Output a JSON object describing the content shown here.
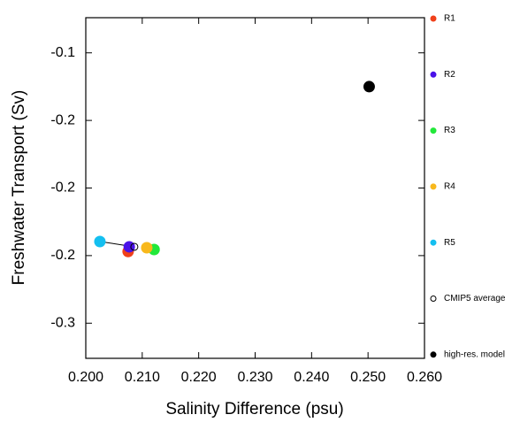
{
  "chart_data": {
    "type": "scatter",
    "xlabel": "Salinity Difference (psu)",
    "ylabel": "Freshwater Transport (Sv)",
    "xlim": [
      0.2,
      0.26
    ],
    "ylim": [
      -0.326,
      -0.074
    ],
    "xticks": [
      {
        "value": 0.2,
        "label": "0.200"
      },
      {
        "value": 0.21,
        "label": "0.210"
      },
      {
        "value": 0.22,
        "label": "0.220"
      },
      {
        "value": 0.23,
        "label": "0.230"
      },
      {
        "value": 0.24,
        "label": "0.240"
      },
      {
        "value": 0.25,
        "label": "0.250"
      },
      {
        "value": 0.26,
        "label": "0.260"
      }
    ],
    "yticks": [
      -0.1,
      {
        "value": -0.15,
        "label": "-0.2"
      },
      {
        "value": -0.2,
        "label": "-0.2"
      },
      {
        "value": -0.25,
        "label": "-0.2"
      },
      -0.3
    ],
    "series": [
      {
        "name": "R1",
        "color": "#f0401a",
        "x": [
          0.2075
        ],
        "values": [
          -0.247
        ]
      },
      {
        "name": "R2",
        "color": "#4a12e8",
        "x": [
          0.2077
        ],
        "values": [
          -0.2435
        ]
      },
      {
        "name": "R3",
        "color": "#22e83a",
        "x": [
          0.2121
        ],
        "values": [
          -0.2455
        ]
      },
      {
        "name": "R4",
        "color": "#f8b81c",
        "x": [
          0.2108
        ],
        "values": [
          -0.2442
        ]
      },
      {
        "name": "R5",
        "color": "#14bff0",
        "x": [
          0.2025
        ],
        "values": [
          -0.2396
        ]
      },
      {
        "name": "CMIP5 average",
        "color": "#000000",
        "fill": "none",
        "x": [
          0.2086
        ],
        "values": [
          -0.2435
        ]
      },
      {
        "name": "high-res. model",
        "color": "#000000",
        "x": [
          0.2502
        ],
        "values": [
          -0.125
        ]
      }
    ]
  }
}
